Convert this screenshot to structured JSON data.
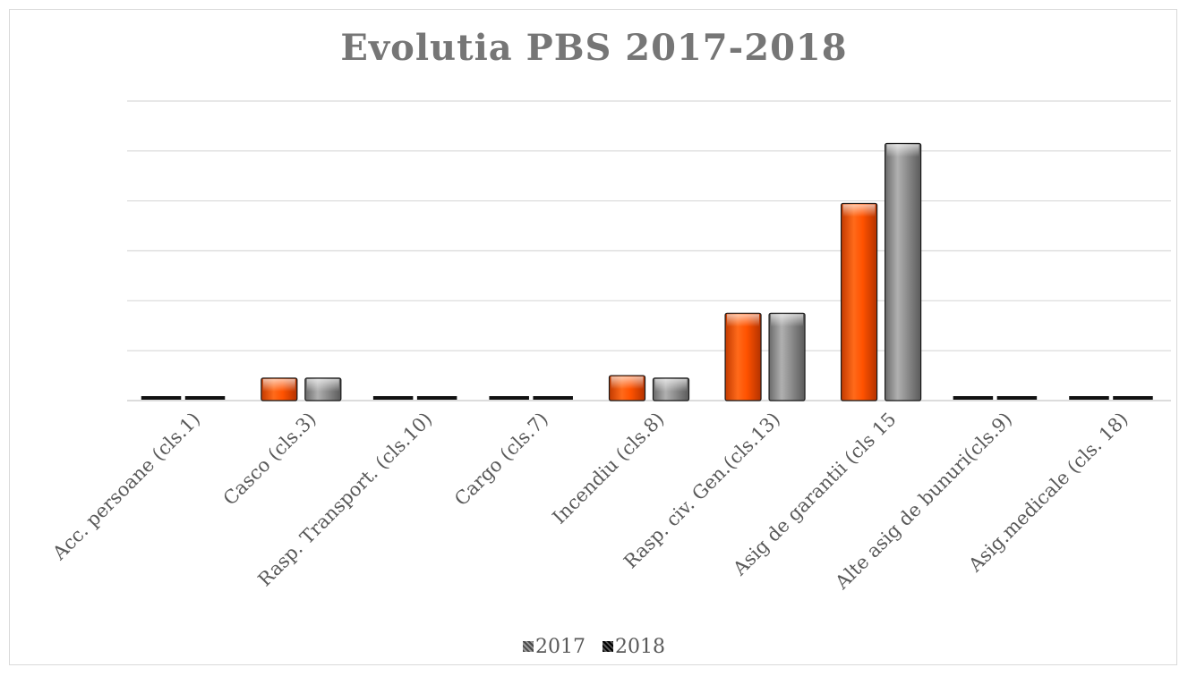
{
  "chart_data": {
    "type": "bar",
    "title": "Evolutia  PBS 2017-2018",
    "categories": [
      "Acc.  persoane (cls.1)",
      "Casco (cls.3)",
      "Rasp. Transport. (cls.10)",
      "Cargo (cls.7)",
      "Incendiu (cls.8)",
      "Rasp. civ. Gen.(cls.13)",
      "Asig de garantii (cls 15",
      "Alte asig de bunuri(cls.9)",
      "Asig.medicale (cls. 18)"
    ],
    "series": [
      {
        "name": "2017",
        "values": [
          0,
          0.45,
          0,
          0,
          0.5,
          1.75,
          3.95,
          0,
          0
        ],
        "color": "#ff5a00"
      },
      {
        "name": "2018",
        "values": [
          0,
          0.45,
          0,
          0,
          0.45,
          1.75,
          5.15,
          0,
          0
        ],
        "color": "#8c8c8c"
      }
    ],
    "ylim": [
      0,
      6
    ],
    "gridlines": [
      1,
      2,
      3,
      4,
      5,
      6
    ],
    "grid": true,
    "y_tick_labels_shown": false,
    "legend_position": "bottom",
    "xlabel": "",
    "ylabel": ""
  },
  "legend": {
    "label_2017": "2017",
    "label_2018": "2018"
  }
}
